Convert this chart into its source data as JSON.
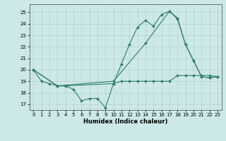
{
  "xlabel": "Humidex (Indice chaleur)",
  "background_color": "#cce8e8",
  "grid_color": "#b8d4d4",
  "line_color": "#2e7d6e",
  "xlim": [
    -0.5,
    23.5
  ],
  "ylim": [
    16.5,
    25.7
  ],
  "yticks": [
    17,
    18,
    19,
    20,
    21,
    22,
    23,
    24,
    25
  ],
  "xticks": [
    0,
    1,
    2,
    3,
    4,
    5,
    6,
    7,
    8,
    9,
    10,
    11,
    12,
    13,
    14,
    15,
    16,
    17,
    18,
    19,
    20,
    21,
    22,
    23
  ],
  "series": [
    {
      "x": [
        0,
        1,
        2,
        3,
        4,
        5,
        6,
        7,
        8,
        9,
        10,
        11,
        12,
        13,
        14,
        15,
        16,
        17,
        18,
        19,
        20,
        21,
        22,
        23
      ],
      "y": [
        20,
        19,
        18.8,
        18.6,
        18.6,
        18.3,
        17.3,
        17.5,
        17.5,
        16.7,
        18.8,
        19,
        19,
        19,
        19,
        19,
        19,
        19,
        19.5,
        19.5,
        19.5,
        19.5,
        19.5,
        19.4
      ]
    },
    {
      "x": [
        0,
        3,
        4,
        10,
        11,
        12,
        13,
        14,
        15,
        16,
        17,
        18,
        19,
        20,
        21,
        22,
        23
      ],
      "y": [
        20,
        18.6,
        18.6,
        18.8,
        20.5,
        22.2,
        23.7,
        24.3,
        23.8,
        24.8,
        25.1,
        24.4,
        22.2,
        20.8,
        19.4,
        19.3,
        19.4
      ]
    },
    {
      "x": [
        0,
        3,
        10,
        14,
        17,
        18,
        19,
        20,
        21,
        22,
        23
      ],
      "y": [
        20,
        18.6,
        19,
        22.3,
        25.1,
        24.5,
        22.2,
        20.8,
        19.4,
        19.3,
        19.4
      ]
    }
  ]
}
